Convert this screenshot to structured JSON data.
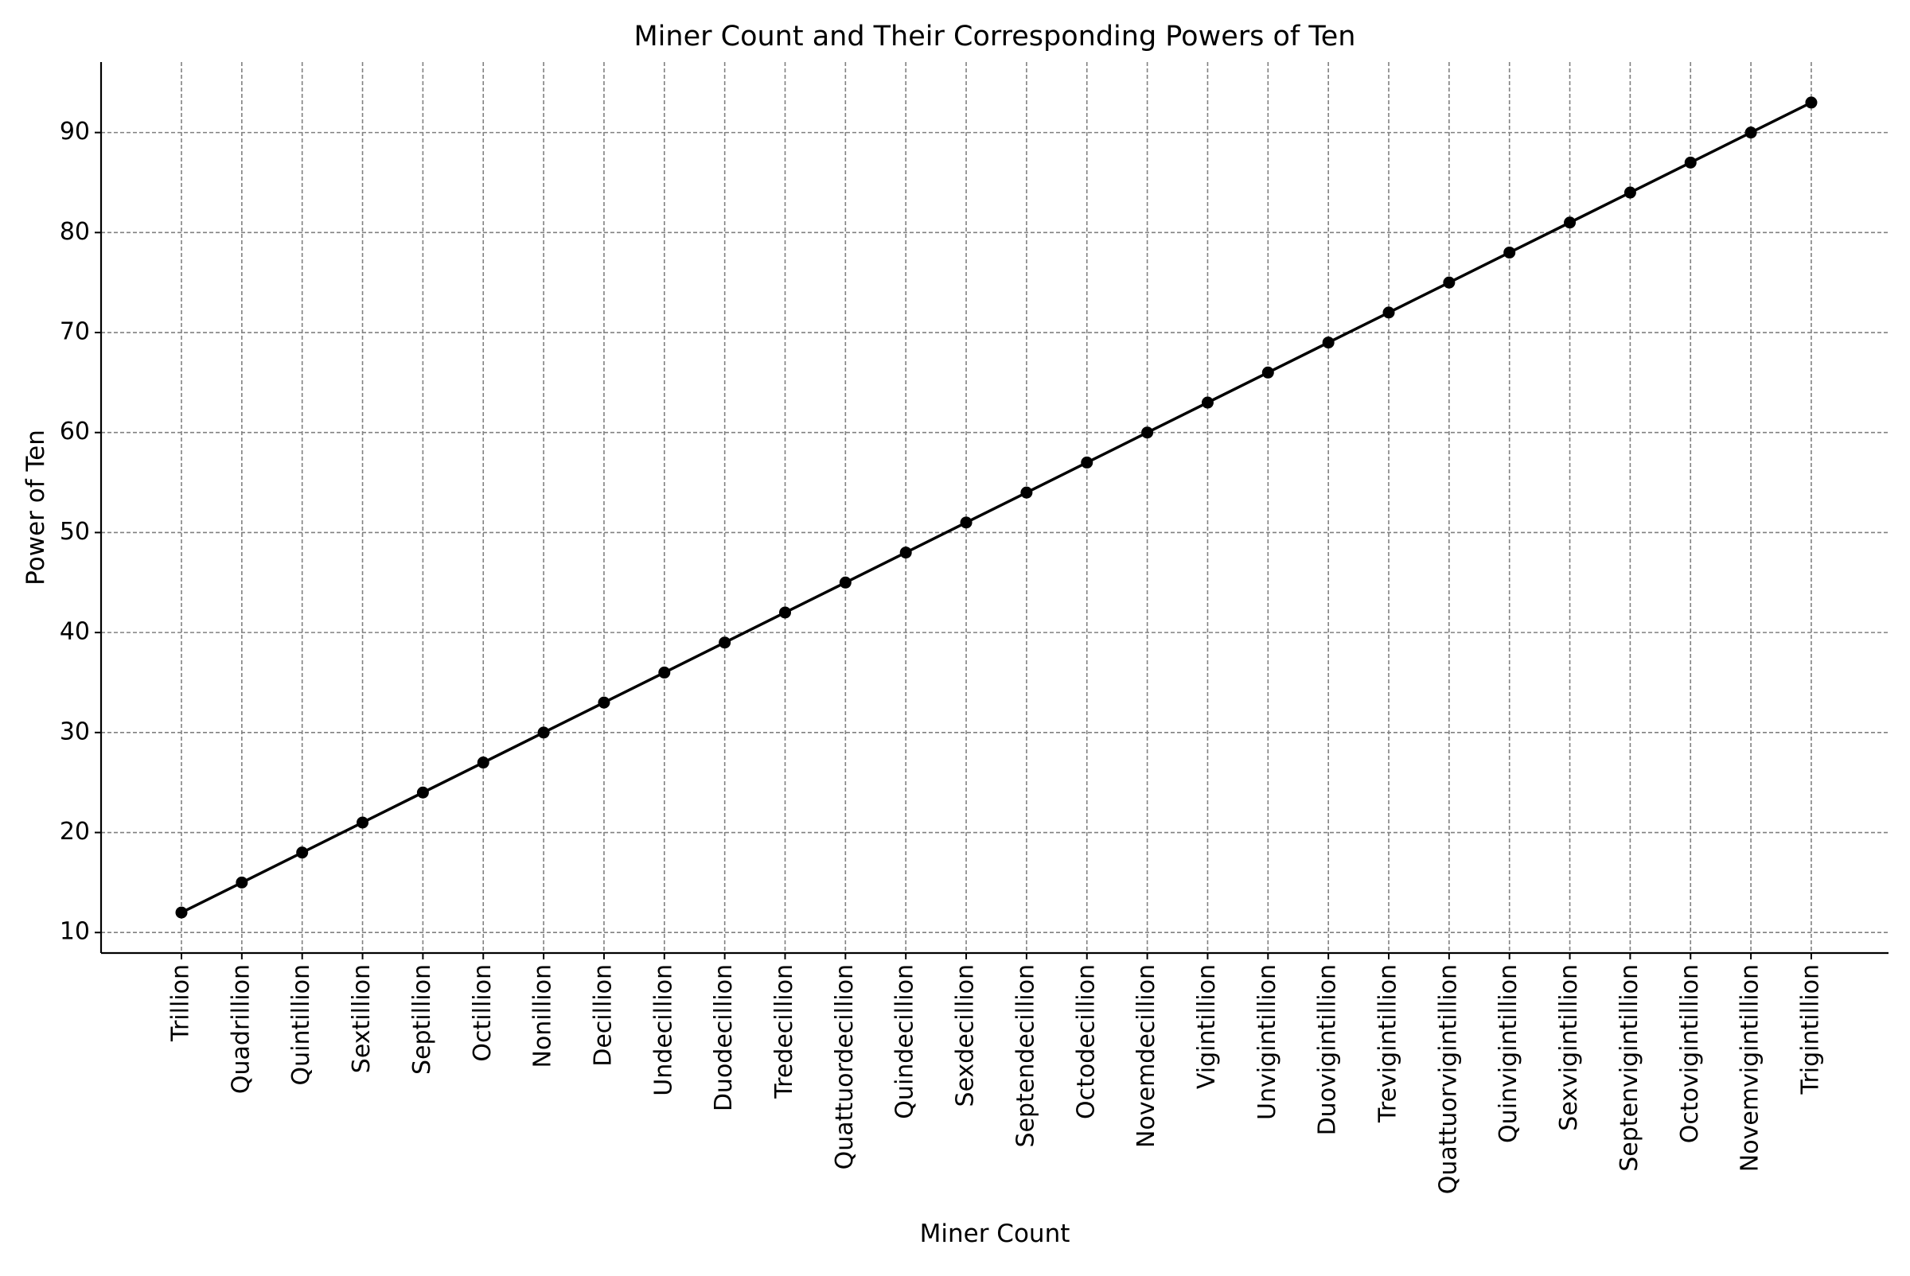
{
  "chart_data": {
    "type": "line",
    "title": "Miner Count and Their Corresponding Powers of Ten",
    "xlabel": "Miner Count",
    "ylabel": "Power of Ten",
    "categories": [
      "Trillion",
      "Quadrillion",
      "Quintillion",
      "Sextillion",
      "Septillion",
      "Octillion",
      "Nonillion",
      "Decillion",
      "Undecillion",
      "Duodecillion",
      "Tredecillion",
      "Quattuordecillion",
      "Quindecillion",
      "Sexdecillion",
      "Septendecillion",
      "Octodecillion",
      "Novemdecillion",
      "Vigintillion",
      "Unvigintillion",
      "Duovigintillion",
      "Trevigintillion",
      "Quattuorvigintillion",
      "Quinvigintillion",
      "Sexvigintillion",
      "Septenvigintillion",
      "Octovigintillion",
      "Novemvigintillion",
      "Trigintillion"
    ],
    "series": [
      {
        "values": [
          12,
          15,
          18,
          21,
          24,
          27,
          30,
          33,
          36,
          39,
          42,
          45,
          48,
          51,
          54,
          57,
          60,
          63,
          66,
          69,
          72,
          75,
          78,
          81,
          84,
          87,
          90,
          93
        ]
      }
    ],
    "yticks": [
      10,
      20,
      30,
      40,
      50,
      60,
      70,
      80,
      90
    ],
    "ylim": [
      7.95,
      97.05
    ],
    "grid": true,
    "marker": "circle",
    "line_color": "#000000",
    "grid_color": "#808080"
  }
}
